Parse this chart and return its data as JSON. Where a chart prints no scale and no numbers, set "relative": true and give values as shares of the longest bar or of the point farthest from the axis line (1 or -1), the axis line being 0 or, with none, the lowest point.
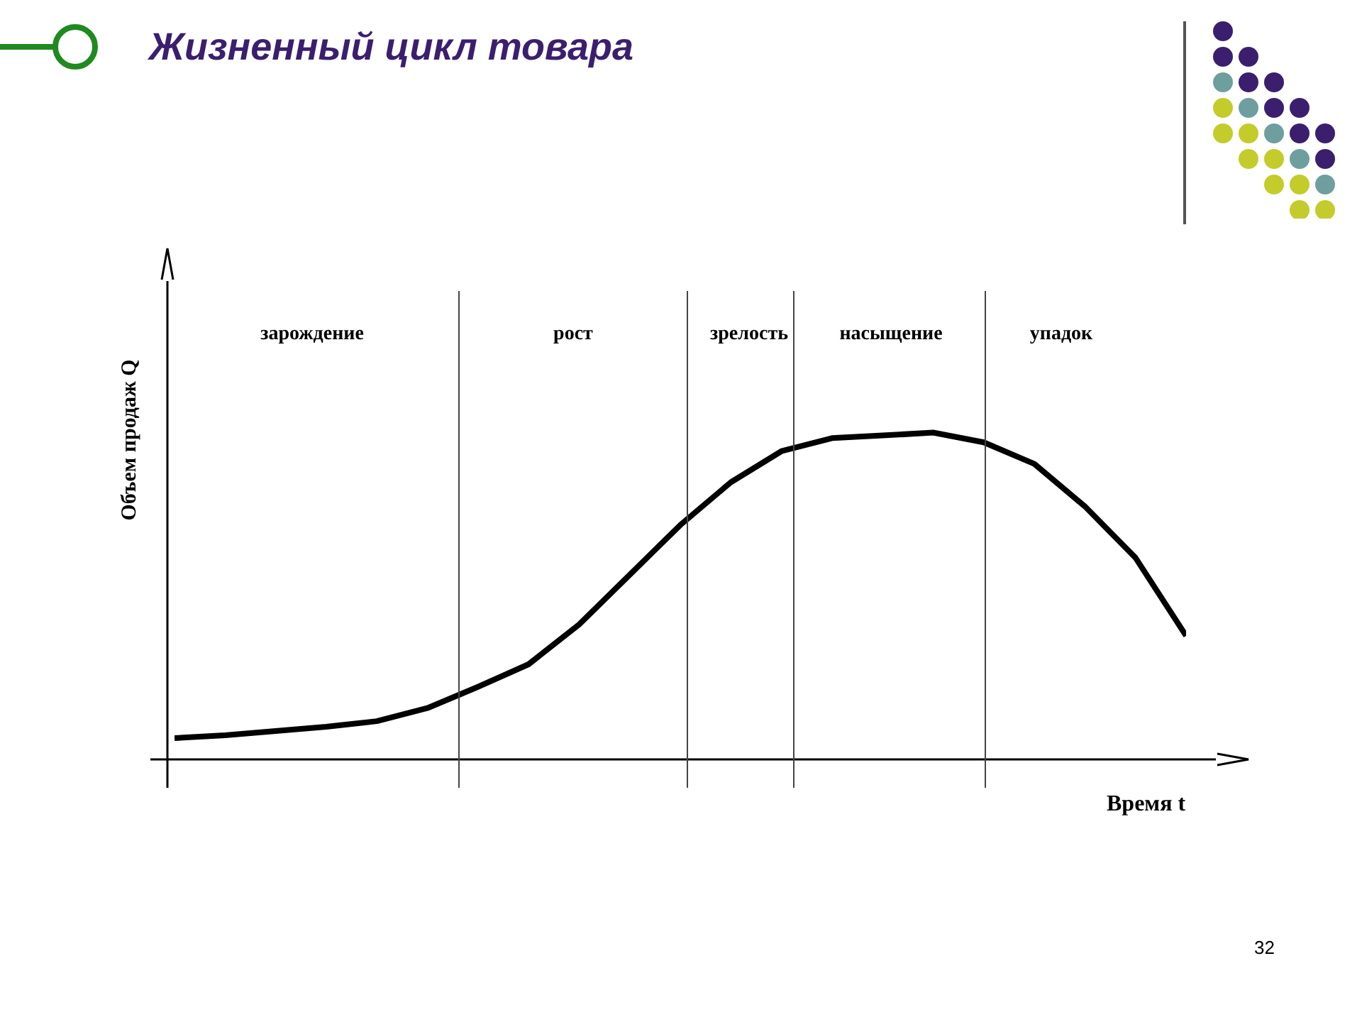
{
  "chart_data": {
    "type": "line",
    "title": "Жизненный цикл товара",
    "xlabel": "Время t",
    "ylabel": "Объем продаж Q",
    "relative": true,
    "color": "#000000",
    "marker": "none",
    "categories": [
      null,
      null,
      null,
      null,
      null,
      null,
      null,
      null,
      null,
      null,
      null,
      null,
      null,
      null,
      null,
      null,
      null,
      null,
      null,
      null,
      null
    ],
    "values": [
      0.065,
      0.074,
      0.087,
      0.1,
      0.117,
      0.157,
      0.222,
      0.291,
      0.413,
      0.565,
      0.717,
      0.848,
      0.943,
      0.983,
      0.991,
      1,
      0.97,
      0.904,
      0.774,
      0.617,
      0.378
    ],
    "annotations": [
      "зарождение",
      "рост",
      "зрелость",
      "насыщение",
      "упадок",
      "32"
    ]
  }
}
